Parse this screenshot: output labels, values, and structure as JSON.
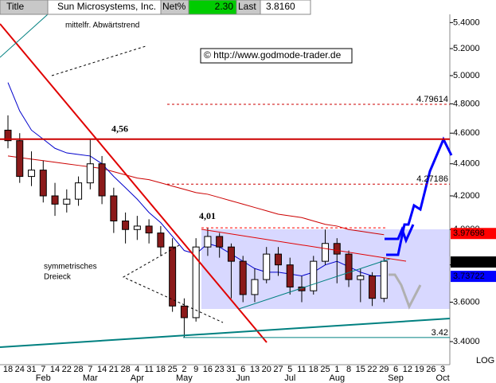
{
  "chart_data": {
    "type": "candlestick",
    "header": {
      "title": "Title",
      "name": "Sun Microsystems, Inc.",
      "net_label": "Net%",
      "net": "2.30",
      "last_label": "Last",
      "last": "3.8160"
    },
    "annotations": {
      "trend": "mittelfr. Abwärtstrend",
      "pattern_1": "symmetrisches",
      "pattern_2": "Dreieck",
      "source": "© http://www.godmode-trader.de"
    },
    "scale_label": "LOG",
    "log": true,
    "categories": [
      "18",
      "24",
      "31",
      "7",
      "14",
      "22",
      "28",
      "7",
      "14",
      "21",
      "28",
      "4",
      "11",
      "18",
      "25",
      "2",
      "9",
      "16",
      "23",
      "31",
      "6",
      "13",
      "20",
      "27",
      "5",
      "11",
      "18",
      "25",
      "1",
      "8",
      "15",
      "22",
      "29",
      "6",
      "12",
      "19",
      "26",
      "3"
    ],
    "months": [
      "Feb",
      "Mar",
      "Apr",
      "May",
      "Jun",
      "Jul",
      "Aug",
      "Sep",
      "Oct"
    ],
    "open": [
      4.62,
      4.55,
      4.32,
      4.36,
      4.2,
      4.15,
      4.18,
      4.28,
      4.4,
      4.2,
      4.05,
      4.0,
      4.02,
      3.98,
      3.9,
      3.58,
      3.52,
      3.9,
      3.96,
      3.9,
      3.82,
      3.64,
      3.72,
      3.86,
      3.8,
      3.68,
      3.66,
      3.82,
      3.92,
      3.86,
      3.72,
      3.74,
      3.62,
      null,
      null,
      null,
      null,
      null
    ],
    "high": [
      4.72,
      4.6,
      4.48,
      4.42,
      4.28,
      4.24,
      4.32,
      4.56,
      4.45,
      4.25,
      4.1,
      4.08,
      4.06,
      4.02,
      3.95,
      3.62,
      3.95,
      4.01,
      3.98,
      3.92,
      3.85,
      3.78,
      3.9,
      3.9,
      3.84,
      3.74,
      3.85,
      4.0,
      3.95,
      3.88,
      3.78,
      3.76,
      3.84,
      null,
      null,
      null,
      null,
      null
    ],
    "low": [
      4.5,
      4.28,
      4.26,
      4.16,
      4.08,
      4.1,
      4.14,
      4.24,
      4.15,
      3.98,
      3.92,
      3.94,
      3.92,
      3.85,
      3.55,
      3.42,
      3.5,
      3.85,
      3.84,
      3.62,
      3.6,
      3.6,
      3.7,
      3.74,
      3.64,
      3.6,
      3.64,
      3.8,
      3.7,
      3.68,
      3.6,
      3.58,
      3.6,
      null,
      null,
      null,
      null,
      null
    ],
    "close": [
      4.55,
      4.32,
      4.36,
      4.2,
      4.15,
      4.18,
      4.28,
      4.4,
      4.2,
      4.05,
      4.0,
      4.02,
      3.98,
      3.9,
      3.58,
      3.52,
      3.9,
      3.96,
      3.9,
      3.82,
      3.64,
      3.72,
      3.86,
      3.8,
      3.68,
      3.66,
      3.82,
      3.92,
      3.86,
      3.72,
      3.74,
      3.62,
      3.82,
      null,
      null,
      null,
      null,
      null
    ],
    "series": [
      {
        "color": "#cc0000",
        "values": [
          4.45,
          4.44,
          4.43,
          4.42,
          4.41,
          4.4,
          4.39,
          4.38,
          4.37,
          4.35,
          4.33,
          4.31,
          4.3,
          4.28,
          4.26,
          4.24,
          4.22,
          4.21,
          4.19,
          4.17,
          4.15,
          4.13,
          4.11,
          4.09,
          4.08,
          4.07,
          4.05,
          4.03,
          4.02,
          4.0,
          3.99,
          3.98,
          3.97,
          null,
          null,
          null,
          null,
          null
        ]
      },
      {
        "color": "#0000cc",
        "values": [
          4.95,
          4.75,
          4.62,
          4.56,
          4.5,
          4.47,
          4.46,
          4.45,
          4.4,
          4.32,
          4.25,
          4.18,
          4.1,
          4.04,
          3.96,
          3.88,
          3.86,
          3.92,
          3.9,
          3.86,
          3.82,
          3.78,
          3.76,
          3.76,
          3.75,
          3.74,
          3.76,
          3.8,
          3.82,
          3.79,
          3.76,
          3.74,
          3.74,
          null,
          null,
          null,
          null,
          null
        ]
      }
    ],
    "levels": [
      {
        "value": 4.79614,
        "color": "#cc0000",
        "style": "dashed"
      },
      {
        "value": 4.27186,
        "color": "#cc0000",
        "style": "dashed"
      },
      {
        "value": 4.56,
        "label": "4,56",
        "color": "#cc0000",
        "style": "solid"
      },
      {
        "value": 4.01,
        "label": "4,01",
        "color": "#000000",
        "style": "marker"
      },
      {
        "value": 3.42,
        "color": "#008080",
        "style": "teal"
      },
      {
        "value": 3.97698,
        "color": "#ff0000",
        "style": "axis"
      },
      {
        "value": 3.816,
        "label": "3.8160",
        "color": "#000000",
        "style": "axis"
      },
      {
        "value": 3.73722,
        "color": "#0000ff",
        "style": "axis"
      }
    ],
    "ylim": [
      3.288,
      5.465
    ],
    "yticks": [
      {
        "value": 3.4,
        "label": "3.4000"
      },
      {
        "value": 3.6,
        "label": "3.6000"
      },
      {
        "value": 3.8,
        "label": "3.8000"
      },
      {
        "value": 4.0,
        "label": "4.0000"
      },
      {
        "value": 4.2,
        "label": "4.2000"
      },
      {
        "value": 4.4,
        "label": "4.4000"
      },
      {
        "value": 4.6,
        "label": "4.6000"
      },
      {
        "value": 4.8,
        "label": "4.8000"
      },
      {
        "value": 5.0,
        "label": "5.0000"
      },
      {
        "value": 5.2,
        "label": "5.2000"
      },
      {
        "value": 5.4,
        "label": "5.4000"
      }
    ]
  }
}
